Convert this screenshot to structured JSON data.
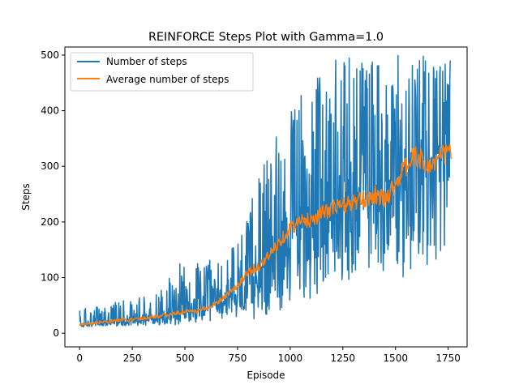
{
  "chart_data": {
    "type": "line",
    "title": "REINFORCE Steps Plot with Gamma=1.0",
    "xlabel": "Episode",
    "ylabel": "Steps",
    "xlim": [
      -70,
      1840
    ],
    "ylim": [
      -24.5,
      514.5
    ],
    "xticks": [
      0,
      250,
      500,
      750,
      1000,
      1250,
      1500,
      1750
    ],
    "yticks": [
      0,
      100,
      200,
      300,
      400,
      500
    ],
    "grid": false,
    "legend_position": "top-left",
    "colors": {
      "steps": "#1f77b4",
      "average": "#ff7f0e"
    },
    "series": [
      {
        "name": "Number of steps",
        "key": "steps",
        "envelope": {
          "x": [
            0,
            100,
            200,
            300,
            400,
            450,
            500,
            600,
            700,
            800,
            850,
            900,
            950,
            1000,
            1050,
            1100,
            1150,
            1200,
            1250,
            1300,
            1350,
            1400,
            1450,
            1500,
            1550,
            1600,
            1650,
            1700,
            1760
          ],
          "low": [
            10,
            12,
            13,
            14,
            15,
            15,
            15,
            16,
            18,
            25,
            25,
            30,
            35,
            40,
            50,
            60,
            70,
            80,
            90,
            100,
            110,
            110,
            100,
            120,
            90,
            100,
            80,
            80,
            180
          ],
          "mid": [
            15,
            18,
            22,
            25,
            28,
            30,
            35,
            45,
            60,
            80,
            110,
            140,
            165,
            190,
            200,
            205,
            215,
            225,
            235,
            240,
            250,
            260,
            240,
            280,
            300,
            320,
            310,
            320,
            330
          ],
          "high": [
            45,
            50,
            60,
            65,
            80,
            135,
            120,
            130,
            140,
            210,
            310,
            310,
            390,
            395,
            440,
            440,
            480,
            490,
            495,
            500,
            500,
            500,
            500,
            500,
            500,
            500,
            500,
            500,
            500
          ]
        }
      },
      {
        "name": "Average number of steps",
        "key": "average",
        "x": [
          0,
          50,
          100,
          150,
          200,
          250,
          300,
          350,
          400,
          450,
          500,
          550,
          600,
          650,
          700,
          750,
          800,
          850,
          900,
          950,
          1000,
          1050,
          1100,
          1150,
          1200,
          1250,
          1300,
          1350,
          1400,
          1450,
          1500,
          1550,
          1600,
          1650,
          1700,
          1750,
          1765
        ],
        "y": [
          15,
          18,
          20,
          22,
          24,
          25,
          27,
          30,
          32,
          35,
          40,
          38,
          45,
          55,
          70,
          85,
          110,
          120,
          140,
          165,
          190,
          200,
          205,
          215,
          225,
          230,
          235,
          240,
          250,
          240,
          270,
          300,
          320,
          300,
          310,
          330,
          320
        ]
      }
    ]
  }
}
